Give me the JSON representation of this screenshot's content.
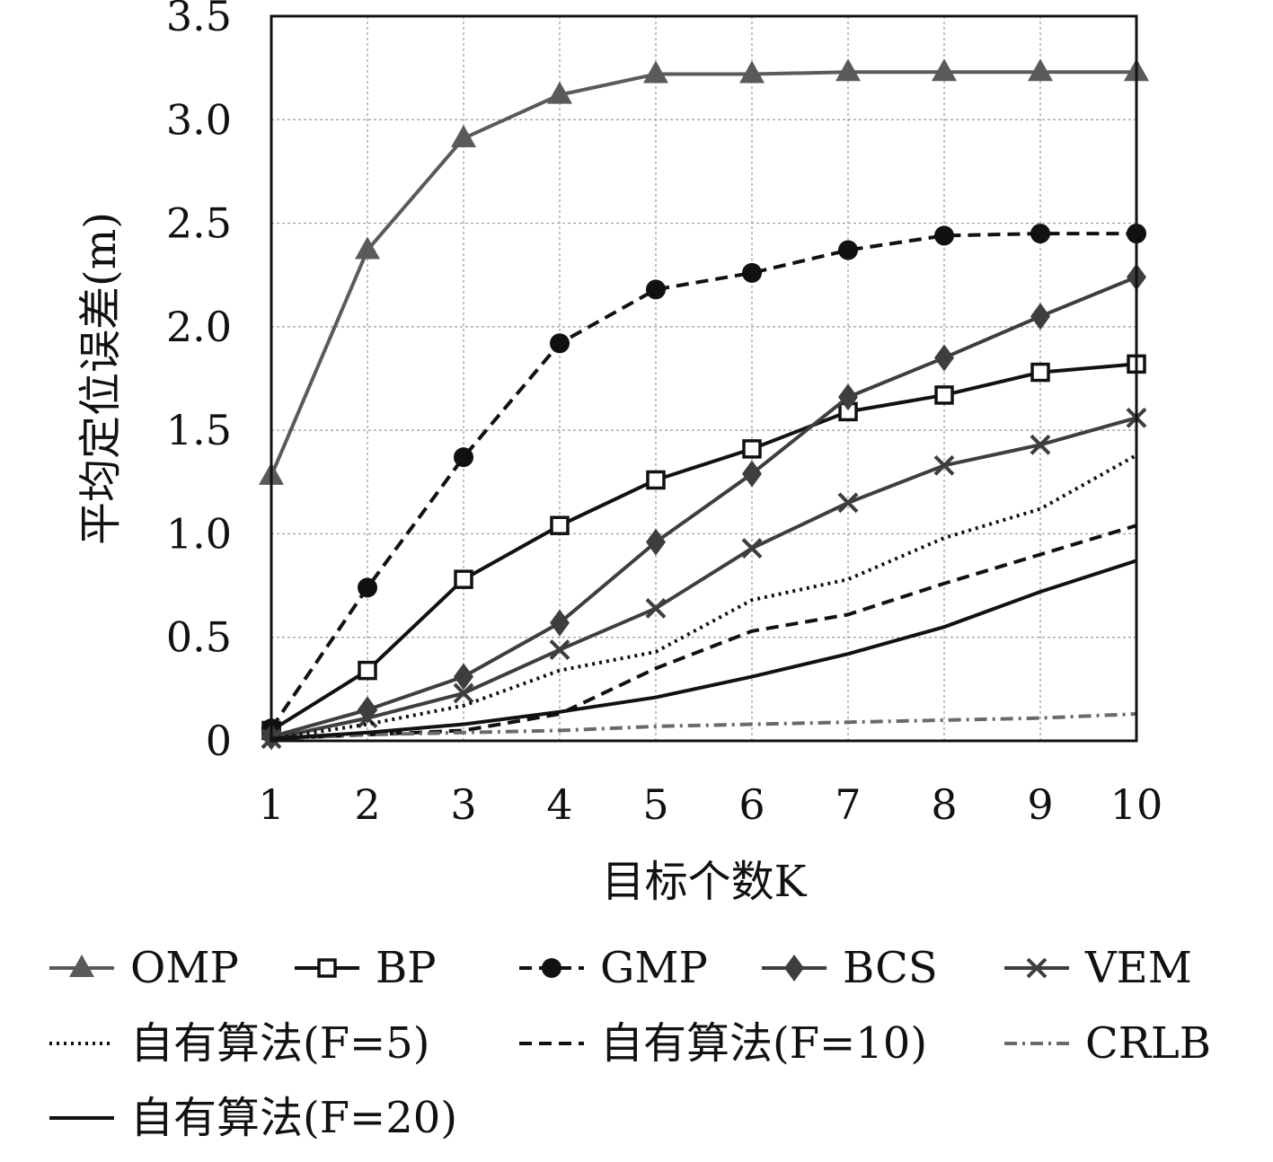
{
  "chart_data": {
    "type": "line",
    "title": "",
    "xlabel": "目标个数K",
    "ylabel": "平均定位误差(m)",
    "xlim": [
      1,
      10
    ],
    "ylim": [
      0,
      3.5
    ],
    "grid": true,
    "x": [
      1,
      2,
      3,
      4,
      5,
      6,
      7,
      8,
      9,
      10
    ],
    "x_ticks": [
      "1",
      "2",
      "3",
      "4",
      "5",
      "6",
      "7",
      "8",
      "9",
      "10"
    ],
    "y_ticks": [
      "0",
      "0.5",
      "1.0",
      "1.5",
      "2.0",
      "2.5",
      "3.0",
      "3.5"
    ],
    "legend_position": "bottom",
    "series": [
      {
        "name": "OMP",
        "color": "#5a5a5a",
        "dash": "solid",
        "marker": "triangle",
        "values": [
          1.28,
          2.37,
          2.91,
          3.12,
          3.22,
          3.22,
          3.23,
          3.23,
          3.23,
          3.23
        ]
      },
      {
        "name": "BP",
        "color": "#111111",
        "dash": "solid",
        "marker": "open-square",
        "values": [
          0.05,
          0.34,
          0.78,
          1.04,
          1.26,
          1.41,
          1.59,
          1.67,
          1.78,
          1.82
        ]
      },
      {
        "name": "GMP",
        "color": "#111111",
        "dash": "dashed",
        "marker": "circle",
        "values": [
          0.06,
          0.74,
          1.37,
          1.92,
          2.18,
          2.26,
          2.37,
          2.44,
          2.45,
          2.45
        ]
      },
      {
        "name": "BCS",
        "color": "#3e3e3e",
        "dash": "solid",
        "marker": "diamond",
        "values": [
          0.02,
          0.15,
          0.31,
          0.57,
          0.96,
          1.29,
          1.66,
          1.85,
          2.05,
          2.24
        ]
      },
      {
        "name": "VEM",
        "color": "#3e3e3e",
        "dash": "solid",
        "marker": "x",
        "values": [
          0.01,
          0.11,
          0.23,
          0.44,
          0.64,
          0.93,
          1.15,
          1.33,
          1.43,
          1.56
        ]
      },
      {
        "name": "自有算法(F=5)",
        "color": "#111111",
        "dash": "dotted",
        "marker": "none",
        "values": [
          0.01,
          0.08,
          0.17,
          0.34,
          0.43,
          0.68,
          0.78,
          0.98,
          1.12,
          1.38
        ]
      },
      {
        "name": "自有算法(F=10)",
        "color": "#111111",
        "dash": "dashed",
        "marker": "none",
        "values": [
          0.01,
          0.03,
          0.05,
          0.13,
          0.35,
          0.53,
          0.61,
          0.76,
          0.9,
          1.04
        ]
      },
      {
        "name": "CRLB",
        "color": "#6a6a6a",
        "dash": "dashdot",
        "marker": "none",
        "values": [
          0.01,
          0.03,
          0.04,
          0.05,
          0.07,
          0.08,
          0.09,
          0.1,
          0.11,
          0.13
        ]
      },
      {
        "name": "自有算法(F=20)",
        "color": "#111111",
        "dash": "solid",
        "marker": "none",
        "values": [
          0.01,
          0.04,
          0.08,
          0.14,
          0.21,
          0.31,
          0.42,
          0.55,
          0.72,
          0.87
        ]
      }
    ]
  }
}
